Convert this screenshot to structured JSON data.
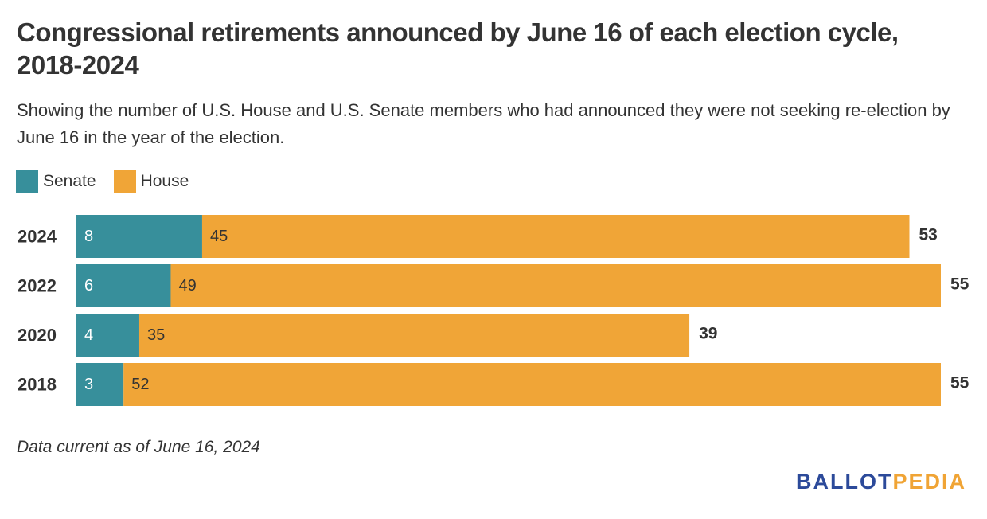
{
  "title": "Congressional retirements announced by June 16 of each election cycle, 2018-2024",
  "subtitle": "Showing the number of U.S. House and U.S. Senate members who had announced they were not seeking re-election by June 16 in the year of the election.",
  "note": "Data current as of June 16, 2024",
  "logo": {
    "part1": "BALLOT",
    "part2": "PEDIA"
  },
  "colors": {
    "senate": "#378f9b",
    "house": "#f0a537",
    "text": "#333333",
    "segment_label_light": "#ffffff",
    "segment_label_dark": "#333333"
  },
  "chart_data": {
    "type": "bar",
    "orientation": "horizontal",
    "stacked": true,
    "categories": [
      "2024",
      "2022",
      "2020",
      "2018"
    ],
    "series": [
      {
        "name": "Senate",
        "values": [
          8,
          6,
          4,
          3
        ]
      },
      {
        "name": "House",
        "values": [
          45,
          49,
          35,
          52
        ]
      }
    ],
    "totals": [
      53,
      55,
      39,
      55
    ],
    "title": "Congressional retirements announced by June 16 of each election cycle, 2018-2024",
    "xlabel": "",
    "ylabel": "",
    "xlim": [
      0,
      55
    ],
    "grid": false,
    "legend": "top-left"
  }
}
